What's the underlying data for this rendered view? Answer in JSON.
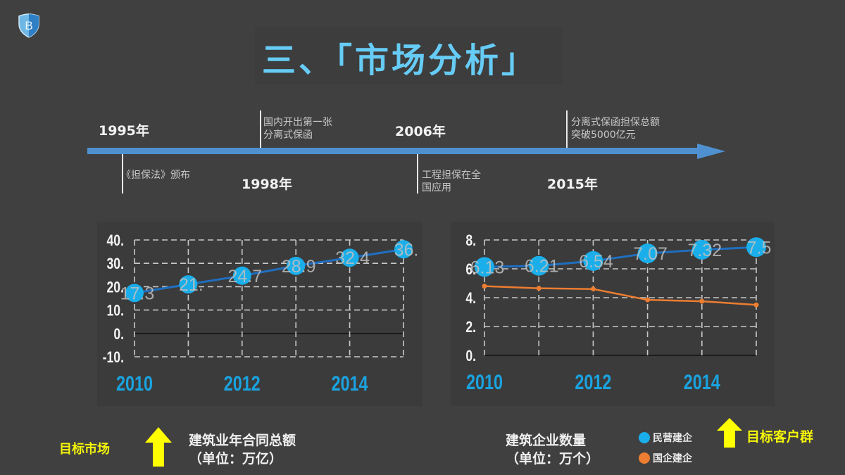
{
  "slide": {
    "title": "三、「市场分析」",
    "logo_letter": "B"
  },
  "timeline": {
    "years": [
      {
        "label": "1995年",
        "position": "above"
      },
      {
        "label": "1998年",
        "position": "below"
      },
      {
        "label": "2006年",
        "position": "above"
      },
      {
        "label": "2015年",
        "position": "below"
      }
    ],
    "events": [
      {
        "lines": [
          "《担保法》颁布"
        ],
        "position": "below"
      },
      {
        "lines": [
          "国内开出第一张",
          "分离式保函"
        ],
        "position": "above"
      },
      {
        "lines": [
          "工程担保在全",
          "国应用"
        ],
        "position": "below"
      },
      {
        "lines": [
          "分离式保函担保总额",
          "突破5000亿元"
        ],
        "position": "above"
      }
    ]
  },
  "colors": {
    "background": "#404040",
    "title": "#66ccf5",
    "timeline": "#4f90d0",
    "series_blue": "#1aaeea",
    "series_blue_line": "#1f6fc0",
    "series_orange": "#ed7d31",
    "axis_year": "#1aa3e0",
    "highlight_yellow": "#f5f50a"
  },
  "chart_data": [
    {
      "type": "line",
      "title": "建筑业年合同总额（单位：万亿）",
      "x": [
        2010,
        2011,
        2012,
        2013,
        2014,
        2015
      ],
      "x_tick_labels": [
        "2010",
        "2012",
        "2014"
      ],
      "y_tick_labels": [
        "40.",
        "30.",
        "20.",
        "10.",
        "0.",
        "-10."
      ],
      "ylim": [
        -10,
        40
      ],
      "grid": true,
      "series": [
        {
          "name": "建筑业年合同总额",
          "values": [
            17.3,
            21.0,
            24.7,
            28.9,
            32.4,
            36.0
          ],
          "data_labels": [
            "17.3",
            "21.",
            "24.7",
            "28.9",
            "32.4",
            "36."
          ]
        }
      ],
      "xlabel": "",
      "ylabel": "万亿"
    },
    {
      "type": "line",
      "title": "建筑企业数量（单位：万个）",
      "x": [
        2010,
        2011,
        2012,
        2013,
        2014,
        2015
      ],
      "x_tick_labels": [
        "2010",
        "2012",
        "2014"
      ],
      "y_tick_labels": [
        "8.",
        "6.",
        "4.",
        "2.",
        "0."
      ],
      "ylim": [
        0,
        8
      ],
      "grid": true,
      "legend_position": "bottom-right",
      "series": [
        {
          "name": "民营建企",
          "values": [
            6.13,
            6.21,
            6.54,
            7.07,
            7.32,
            7.5
          ],
          "data_labels": [
            "6.13",
            "6.21",
            "6.54",
            "7.07",
            "7.32",
            "7.5"
          ]
        },
        {
          "name": "国企建企",
          "values": [
            4.8,
            4.65,
            4.6,
            3.85,
            3.75,
            3.5
          ]
        }
      ],
      "xlabel": "",
      "ylabel": "万个"
    }
  ],
  "bottom": {
    "target_market": "目标市场",
    "left_caption": [
      "建筑业年合同总额",
      "（单位：万亿）"
    ],
    "right_caption": [
      "建筑企业数量",
      "（单位：万个）"
    ],
    "legend": [
      "民营建企",
      "国企建企"
    ],
    "target_customers": "目标客户群"
  }
}
